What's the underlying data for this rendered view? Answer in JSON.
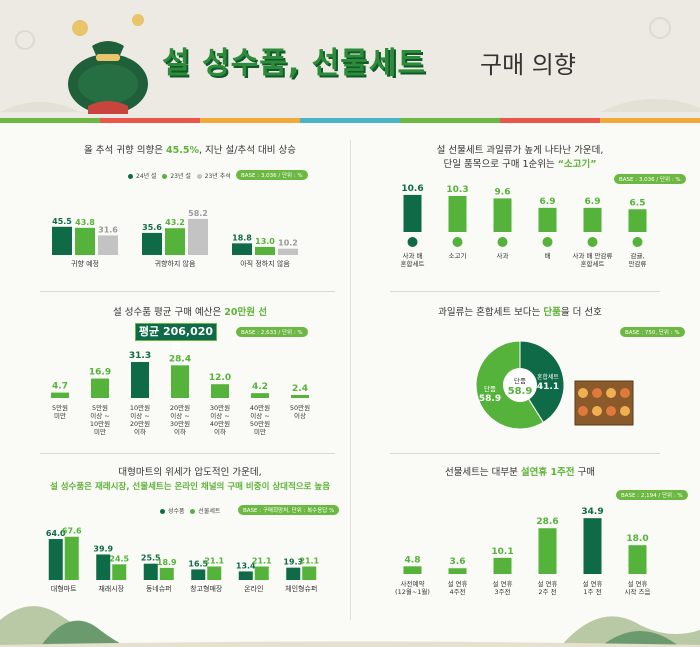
{
  "header": {
    "title_main": "설 성수품, 선물세트",
    "title_sub": "구매 의향"
  },
  "colors": {
    "dark": "#0f6b47",
    "green": "#55b33b",
    "gray": "#c3c3c3",
    "stripe": [
      "#6cb842",
      "#e9574b",
      "#f0a93a",
      "#4bb3c8",
      "#6cb842",
      "#e9574b",
      "#f0a93a"
    ]
  },
  "sec1": {
    "title_pre": "올 추석 귀향 의향은 ",
    "title_bold": "45.5%",
    "title_post": ", 지난 설/추석 대비 상승",
    "legend": [
      "24년 설",
      "23년 설",
      "23년 추석"
    ],
    "base": "BASE : 3,036 / 단위 : %"
  },
  "sec2": {
    "title_line1": "설 선물세트 과일류가 높게 나타난 가운데,",
    "title_line2_pre": "단일 품목으로 구매 1순위는 ",
    "title_line2_bold": "“소고기”",
    "base": "BASE : 3,036 / 단위 : %"
  },
  "sec3": {
    "title_pre": "설 성수품  평균 구매 예산은 ",
    "title_bold": "20만원 선",
    "avg_label": "평균  206,020원",
    "base": "BASE : 2,633 / 단위 : %"
  },
  "sec4": {
    "title_pre": "과일류는 혼합세트 보다는 ",
    "title_bold": "단품",
    "title_post": "을 더 선호",
    "base": "BASE : 750, 단위 : %"
  },
  "sec5": {
    "title_line1": "대형마트의 위세가 압도적인 가운데,",
    "title_line2": "설 성수품은 재래시장, 선물세트는 온라인 채널의 구매 비중이 상대적으로 높음",
    "legend": [
      "성수품",
      "선물세트"
    ],
    "base": "BASE : 구매희망처, 단위 : 복수응답 %"
  },
  "sec6": {
    "title_pre": "선물세트는 대부분 ",
    "title_bold": "설연휴 1주전",
    "title_post": " 구매",
    "base": "BASE : 2,194 / 단위 : %"
  },
  "chart_data": [
    {
      "type": "bar",
      "title": "올 추석 귀향 의향은 45.5%, 지난 설/추석 대비 상승",
      "categories": [
        "귀향 예정",
        "귀향하지 않음",
        "아직 정하지 않음"
      ],
      "series": [
        {
          "name": "24년 설",
          "values": [
            45.5,
            35.6,
            18.8
          ]
        },
        {
          "name": "23년 설",
          "values": [
            43.8,
            43.2,
            13.0
          ]
        },
        {
          "name": "23년 추석",
          "values": [
            31.6,
            58.2,
            10.2
          ]
        }
      ]
    },
    {
      "type": "bar",
      "title": "설 선물세트 과일류가 높게 나타난 가운데, 단일 품목으로 구매 1순위는 “소고기”",
      "categories": [
        [
          "사과 배",
          "혼합세트"
        ],
        [
          "소고기"
        ],
        [
          "사과"
        ],
        [
          "배"
        ],
        [
          "사과 배 만감류",
          "혼합세트"
        ],
        [
          "감귤,",
          "만감류"
        ]
      ],
      "values": [
        10.6,
        10.3,
        9.6,
        6.9,
        6.9,
        6.5
      ]
    },
    {
      "type": "bar",
      "title": "설 성수품  평균 구매 예산은 20만원 선",
      "categories": [
        [
          "5만원",
          "미만"
        ],
        [
          "5만원",
          "이상 ~",
          "10만원",
          "미만"
        ],
        [
          "10만원",
          "이상 ~",
          "20만원",
          "이하"
        ],
        [
          "20만원",
          "이상 ~",
          "30만원",
          "이하"
        ],
        [
          "30만원",
          "이상 ~",
          "40만원",
          "이하"
        ],
        [
          "40만원",
          "이상 ~",
          "50만원",
          "미만"
        ],
        [
          "50만원",
          "이상"
        ]
      ],
      "values": [
        4.7,
        16.9,
        31.3,
        28.4,
        12.0,
        4.2,
        2.4
      ]
    },
    {
      "type": "pie",
      "title": "과일류는 혼합세트 보다는 단품을 더 선호",
      "labels": [
        "단품",
        "혼합세트"
      ],
      "values": [
        58.9,
        41.1
      ]
    },
    {
      "type": "bar",
      "title": "대형마트의 위세가 압도적인 가운데, 설 성수품은 재래시장, 선물세트는 온라인 채널의 구매 비중이 상대적으로 높음",
      "categories": [
        "대형마트",
        "재래시장",
        "동네슈퍼",
        "창고형매장",
        "온라인",
        "체인형슈퍼"
      ],
      "series": [
        {
          "name": "성수품",
          "values": [
            64.0,
            39.9,
            25.5,
            16.5,
            13.4,
            19.3
          ]
        },
        {
          "name": "선물세트",
          "values": [
            67.6,
            24.5,
            18.9,
            21.1,
            21.1,
            21.1
          ]
        }
      ]
    },
    {
      "type": "bar",
      "title": "선물세트는 대부분 설연휴 1주전 구매",
      "categories": [
        [
          "사전예약",
          "(12월~1월)"
        ],
        [
          "설 연휴",
          "4주전"
        ],
        [
          "설 연휴",
          "3주전"
        ],
        [
          "설 연휴",
          "2주 전"
        ],
        [
          "설 연휴",
          "1주 전"
        ],
        [
          "설 연휴",
          "시작 즈음"
        ]
      ],
      "values": [
        4.8,
        3.6,
        10.1,
        28.6,
        34.9,
        18.0
      ]
    }
  ]
}
